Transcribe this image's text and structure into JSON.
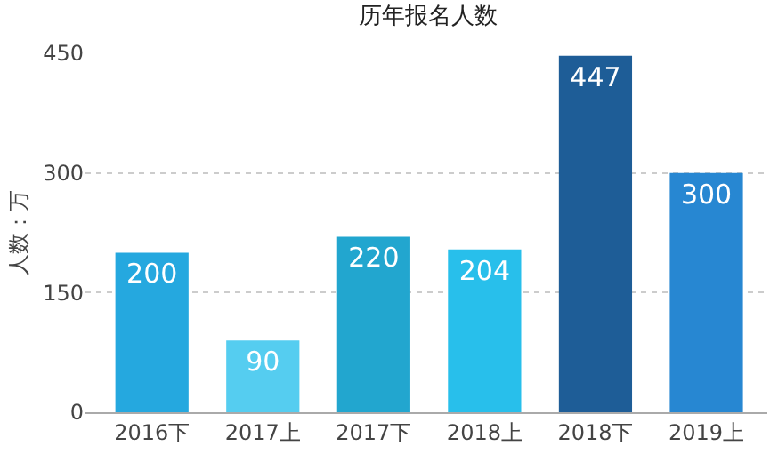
{
  "chart_data": {
    "type": "bar",
    "title": "历年报名人数",
    "ylabel": "人数：万",
    "categories": [
      "2016下",
      "2017上",
      "2017下",
      "2018上",
      "2018下",
      "2019上"
    ],
    "values": [
      200,
      90,
      220,
      204,
      447,
      300
    ],
    "colors": [
      "#25a8df",
      "#55cdf0",
      "#22a6cf",
      "#28bfeb",
      "#1e5d97",
      "#2787d2"
    ],
    "ylim": [
      0,
      450
    ],
    "yticks": [
      0,
      150,
      300,
      450
    ],
    "grid": "y",
    "data_labels": true
  }
}
